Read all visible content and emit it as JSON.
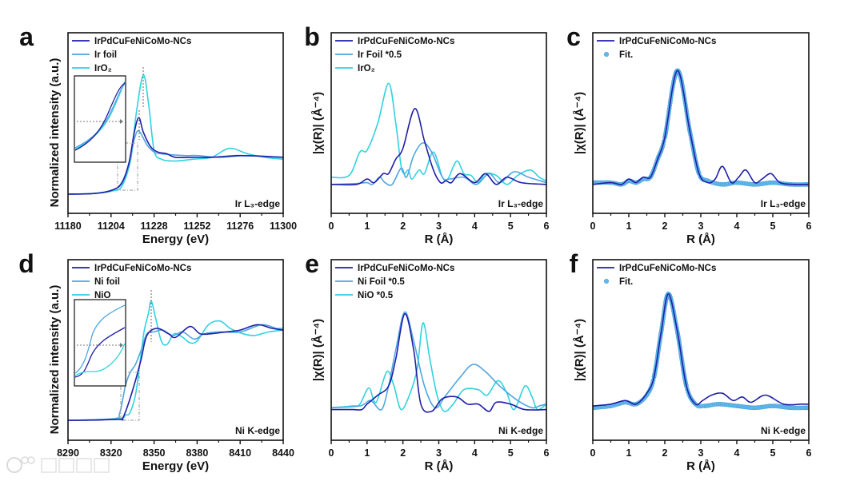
{
  "colors": {
    "sample": "#1f1fa8",
    "foil": "#4ea6e0",
    "oxide": "#2fd3df",
    "fit": "#63b8ea",
    "frame": "#111111",
    "guide": "#888888"
  },
  "watermark": {
    "text": "大数跨境"
  },
  "chart_data": [
    {
      "type": "line",
      "panel": "a",
      "xlabel": "Energy (eV)",
      "ylabel": "Normalized intensity (a.u.)",
      "edge_label": "Ir L₃-edge",
      "xlim": [
        11180,
        11300
      ],
      "ylim": [
        0,
        1
      ],
      "xticks": [
        11180,
        11204,
        11228,
        11252,
        11276,
        11300
      ],
      "xtick_labels": [
        "11180",
        "11204",
        "11228",
        "11252",
        "11276",
        "11300"
      ],
      "has_inset": true,
      "legend": "top-left",
      "series": [
        {
          "name": "IrPdCuFeNiCoMo-NCs",
          "color_key": "sample",
          "style": "line",
          "x": [
            11180,
            11195,
            11205,
            11210,
            11214,
            11217,
            11219.5,
            11222,
            11226,
            11230,
            11235,
            11240,
            11250,
            11260,
            11275,
            11290,
            11300
          ],
          "y": [
            0.106,
            0.11,
            0.13,
            0.17,
            0.28,
            0.45,
            0.53,
            0.45,
            0.37,
            0.34,
            0.33,
            0.31,
            0.31,
            0.31,
            0.32,
            0.315,
            0.31
          ]
        },
        {
          "name": "Ir foil",
          "color_key": "foil",
          "style": "line",
          "x": [
            11180,
            11195,
            11205,
            11210,
            11214,
            11217,
            11219.5,
            11224,
            11228,
            11232,
            11245,
            11252,
            11265,
            11280,
            11300
          ],
          "y": [
            0.106,
            0.11,
            0.13,
            0.165,
            0.27,
            0.41,
            0.456,
            0.38,
            0.34,
            0.33,
            0.32,
            0.32,
            0.31,
            0.32,
            0.31
          ]
        },
        {
          "name": "IrO₂",
          "color_key": "oxide",
          "style": "line",
          "x": [
            11180,
            11195,
            11205,
            11210,
            11215,
            11218,
            11222,
            11225,
            11228,
            11232,
            11240,
            11250,
            11260,
            11270,
            11280,
            11290,
            11300
          ],
          "y": [
            0.106,
            0.11,
            0.125,
            0.15,
            0.3,
            0.55,
            0.765,
            0.6,
            0.35,
            0.3,
            0.29,
            0.3,
            0.31,
            0.36,
            0.33,
            0.31,
            0.3
          ]
        }
      ]
    },
    {
      "type": "line",
      "panel": "b",
      "xlabel": "R (Å)",
      "ylabel": "|χ(R)| (Å⁻⁴)",
      "edge_label": "Ir L₃-edge",
      "xlim": [
        0,
        6
      ],
      "ylim": [
        0,
        1
      ],
      "xticks": [
        0,
        1,
        2,
        3,
        4,
        5,
        6
      ],
      "xtick_labels": [
        "0",
        "1",
        "2",
        "3",
        "4",
        "5",
        "6"
      ],
      "legend": "top-left",
      "series": [
        {
          "name": "IrPdCuFeNiCoMo-NCs",
          "color_key": "sample",
          "style": "line",
          "x": [
            0,
            0.7,
            1.0,
            1.2,
            1.45,
            1.6,
            1.8,
            2.0,
            2.33,
            2.6,
            2.85,
            3.05,
            3.2,
            3.35,
            3.6,
            4.0,
            4.3,
            4.6,
            4.9,
            5.3,
            6
          ],
          "y": [
            0.16,
            0.16,
            0.19,
            0.17,
            0.22,
            0.22,
            0.3,
            0.36,
            0.58,
            0.4,
            0.24,
            0.17,
            0.18,
            0.17,
            0.22,
            0.17,
            0.22,
            0.16,
            0.2,
            0.17,
            0.16
          ]
        },
        {
          "name": "Ir Foil *0.5",
          "color_key": "foil",
          "style": "line",
          "x": [
            0,
            0.7,
            1.0,
            1.15,
            1.35,
            1.5,
            1.7,
            1.95,
            2.1,
            2.3,
            2.55,
            2.8,
            3.1,
            3.3,
            3.7,
            4.05,
            4.4,
            4.7,
            5.1,
            5.5,
            6
          ],
          "y": [
            0.16,
            0.165,
            0.17,
            0.16,
            0.2,
            0.17,
            0.16,
            0.25,
            0.2,
            0.32,
            0.39,
            0.34,
            0.2,
            0.19,
            0.2,
            0.16,
            0.22,
            0.17,
            0.23,
            0.2,
            0.17
          ]
        },
        {
          "name": "IrO₂",
          "color_key": "oxide",
          "style": "line",
          "x": [
            0,
            0.5,
            0.8,
            1.0,
            1.3,
            1.6,
            1.8,
            1.95,
            2.05,
            2.15,
            2.25,
            2.45,
            2.6,
            2.85,
            3.1,
            3.25,
            3.5,
            3.7,
            3.9,
            4.1,
            4.3,
            4.6,
            4.9,
            5.2,
            5.55,
            5.8,
            6
          ],
          "y": [
            0.2,
            0.21,
            0.34,
            0.35,
            0.5,
            0.72,
            0.5,
            0.26,
            0.22,
            0.24,
            0.19,
            0.24,
            0.22,
            0.34,
            0.2,
            0.19,
            0.29,
            0.22,
            0.21,
            0.17,
            0.22,
            0.21,
            0.16,
            0.21,
            0.24,
            0.2,
            0.18
          ]
        }
      ]
    },
    {
      "type": "line",
      "panel": "c",
      "xlabel": "R (Å)",
      "ylabel": "|χ(R)| (Å⁻⁴)",
      "edge_label": "Ir L₃-edge",
      "xlim": [
        0,
        6
      ],
      "ylim": [
        0,
        1
      ],
      "xticks": [
        0,
        1,
        2,
        3,
        4,
        5,
        6
      ],
      "xtick_labels": [
        "0",
        "1",
        "2",
        "3",
        "4",
        "5",
        "6"
      ],
      "legend": "top-left",
      "series": [
        {
          "name": "IrPdCuFeNiCoMo-NCs",
          "color_key": "sample",
          "style": "line",
          "x": [
            0,
            0.5,
            0.8,
            1.0,
            1.2,
            1.4,
            1.6,
            1.8,
            2.0,
            2.35,
            2.7,
            2.95,
            3.2,
            3.4,
            3.6,
            3.85,
            4.05,
            4.25,
            4.5,
            4.7,
            4.95,
            5.2,
            5.6,
            6
          ],
          "y": [
            0.16,
            0.17,
            0.16,
            0.19,
            0.17,
            0.2,
            0.2,
            0.3,
            0.42,
            0.79,
            0.45,
            0.22,
            0.17,
            0.19,
            0.26,
            0.17,
            0.2,
            0.24,
            0.17,
            0.19,
            0.22,
            0.17,
            0.16,
            0.16
          ]
        },
        {
          "name": "Fit.",
          "color_key": "fit",
          "style": "markers",
          "x": [
            0,
            0.5,
            0.8,
            1.0,
            1.2,
            1.4,
            1.6,
            1.8,
            2.0,
            2.35,
            2.7,
            2.95,
            3.2,
            3.6,
            4.0,
            4.5,
            5.0,
            5.5,
            6
          ],
          "y": [
            0.17,
            0.17,
            0.16,
            0.18,
            0.17,
            0.19,
            0.2,
            0.3,
            0.42,
            0.79,
            0.45,
            0.22,
            0.18,
            0.16,
            0.17,
            0.16,
            0.17,
            0.16,
            0.16
          ]
        }
      ]
    },
    {
      "type": "line",
      "panel": "d",
      "xlabel": "Energy (eV)",
      "ylabel": "Normalized intensity (a.u.)",
      "edge_label": "Ni K-edge",
      "xlim": [
        8290,
        8440
      ],
      "ylim": [
        0,
        1
      ],
      "xticks": [
        8290,
        8320,
        8350,
        8380,
        8410,
        8440
      ],
      "xtick_labels": [
        "8290",
        "8320",
        "8350",
        "8380",
        "8410",
        "8440"
      ],
      "has_inset": true,
      "legend": "top-left",
      "series": [
        {
          "name": "IrPdCuFeNiCoMo-NCs",
          "color_key": "sample",
          "style": "line",
          "x": [
            8290,
            8325,
            8328,
            8332,
            8337,
            8341,
            8345,
            8352,
            8360,
            8365,
            8375,
            8382,
            8390,
            8400,
            8410,
            8422,
            8432,
            8440
          ],
          "y": [
            0.11,
            0.115,
            0.12,
            0.2,
            0.33,
            0.45,
            0.58,
            0.62,
            0.59,
            0.57,
            0.63,
            0.59,
            0.59,
            0.6,
            0.61,
            0.64,
            0.62,
            0.61
          ]
        },
        {
          "name": "Ni foil",
          "color_key": "foil",
          "style": "line",
          "x": [
            8290,
            8322,
            8326,
            8330,
            8333,
            8337,
            8341,
            8345,
            8350,
            8356,
            8363,
            8370,
            8378,
            8385,
            8395,
            8410,
            8425,
            8435,
            8440
          ],
          "y": [
            0.11,
            0.12,
            0.15,
            0.3,
            0.37,
            0.42,
            0.5,
            0.59,
            0.6,
            0.61,
            0.58,
            0.6,
            0.56,
            0.59,
            0.6,
            0.6,
            0.64,
            0.62,
            0.62
          ]
        },
        {
          "name": "NiO",
          "color_key": "oxide",
          "style": "line",
          "x": [
            8290,
            8325,
            8330,
            8333,
            8337,
            8340,
            8343,
            8346,
            8348,
            8351,
            8355,
            8359,
            8364,
            8370,
            8375,
            8380,
            8388,
            8396,
            8403,
            8412,
            8420,
            8430,
            8440
          ],
          "y": [
            0.11,
            0.12,
            0.14,
            0.15,
            0.25,
            0.42,
            0.6,
            0.7,
            0.77,
            0.68,
            0.55,
            0.53,
            0.59,
            0.57,
            0.54,
            0.55,
            0.64,
            0.66,
            0.62,
            0.59,
            0.58,
            0.6,
            0.61
          ]
        }
      ]
    },
    {
      "type": "line",
      "panel": "e",
      "xlabel": "R (Å)",
      "ylabel": "|χ(R)| (Å⁻⁴)",
      "edge_label": "Ni K-edge",
      "xlim": [
        0,
        6
      ],
      "ylim": [
        0,
        1
      ],
      "xticks": [
        0,
        1,
        2,
        3,
        4,
        5,
        6
      ],
      "xtick_labels": [
        "0",
        "1",
        "2",
        "3",
        "4",
        "5",
        "6"
      ],
      "legend": "top-left",
      "series": [
        {
          "name": "IrPdCuFeNiCoMo-NCs",
          "color_key": "sample",
          "style": "line",
          "x": [
            0,
            0.6,
            0.85,
            1.0,
            1.3,
            1.6,
            1.8,
            2.05,
            2.3,
            2.5,
            2.8,
            3.1,
            3.5,
            3.8,
            4.1,
            4.4,
            4.6,
            5.0,
            5.4,
            6
          ],
          "y": [
            0.17,
            0.17,
            0.17,
            0.2,
            0.25,
            0.3,
            0.45,
            0.7,
            0.5,
            0.2,
            0.16,
            0.23,
            0.24,
            0.2,
            0.2,
            0.16,
            0.21,
            0.2,
            0.17,
            0.17
          ]
        },
        {
          "name": "Ni Foil *0.5",
          "color_key": "foil",
          "style": "line",
          "x": [
            0,
            0.8,
            1.1,
            1.4,
            1.6,
            1.8,
            2.05,
            2.3,
            2.6,
            2.9,
            3.2,
            3.6,
            3.95,
            4.3,
            4.7,
            5.2,
            5.6,
            5.8,
            6
          ],
          "y": [
            0.18,
            0.19,
            0.22,
            0.17,
            0.3,
            0.5,
            0.71,
            0.55,
            0.3,
            0.18,
            0.25,
            0.35,
            0.42,
            0.38,
            0.3,
            0.22,
            0.18,
            0.19,
            0.2
          ]
        },
        {
          "name": "NiO *0.5",
          "color_key": "oxide",
          "style": "line",
          "x": [
            0,
            0.6,
            0.8,
            1.05,
            1.25,
            1.55,
            1.75,
            1.95,
            2.2,
            2.4,
            2.56,
            2.75,
            2.95,
            3.15,
            3.4,
            3.7,
            4.1,
            4.35,
            4.65,
            4.9,
            5.1,
            5.4,
            5.6,
            5.75,
            6
          ],
          "y": [
            0.18,
            0.19,
            0.2,
            0.29,
            0.21,
            0.38,
            0.3,
            0.17,
            0.26,
            0.4,
            0.65,
            0.45,
            0.25,
            0.16,
            0.2,
            0.28,
            0.28,
            0.25,
            0.33,
            0.26,
            0.17,
            0.3,
            0.24,
            0.17,
            0.2
          ]
        }
      ]
    },
    {
      "type": "line",
      "panel": "f",
      "xlabel": "R (Å)",
      "ylabel": "|χ(R)| (Å⁻⁴)",
      "edge_label": "Ni K-edge",
      "xlim": [
        0,
        6
      ],
      "ylim": [
        0,
        1
      ],
      "xticks": [
        0,
        1,
        2,
        3,
        4,
        5,
        6
      ],
      "xtick_labels": [
        "0",
        "1",
        "2",
        "3",
        "4",
        "5",
        "6"
      ],
      "legend": "top-left",
      "series": [
        {
          "name": "IrPdCuFeNiCoMo-NCs",
          "color_key": "sample",
          "style": "line",
          "x": [
            0,
            0.5,
            0.9,
            1.2,
            1.5,
            1.7,
            1.9,
            2.1,
            2.35,
            2.6,
            2.85,
            3.05,
            3.3,
            3.6,
            3.9,
            4.15,
            4.4,
            4.8,
            5.3,
            5.8,
            6
          ],
          "y": [
            0.19,
            0.2,
            0.22,
            0.2,
            0.26,
            0.35,
            0.6,
            0.81,
            0.6,
            0.3,
            0.2,
            0.22,
            0.25,
            0.26,
            0.22,
            0.24,
            0.21,
            0.25,
            0.2,
            0.2,
            0.2
          ]
        },
        {
          "name": "Fit.",
          "color_key": "fit",
          "style": "markers",
          "x": [
            0,
            0.5,
            0.9,
            1.2,
            1.5,
            1.7,
            1.9,
            2.1,
            2.35,
            2.6,
            2.85,
            3.1,
            3.5,
            4.0,
            4.5,
            5.0,
            5.5,
            6
          ],
          "y": [
            0.18,
            0.19,
            0.21,
            0.2,
            0.25,
            0.35,
            0.6,
            0.81,
            0.6,
            0.3,
            0.2,
            0.19,
            0.2,
            0.19,
            0.18,
            0.19,
            0.18,
            0.18
          ]
        }
      ]
    }
  ]
}
